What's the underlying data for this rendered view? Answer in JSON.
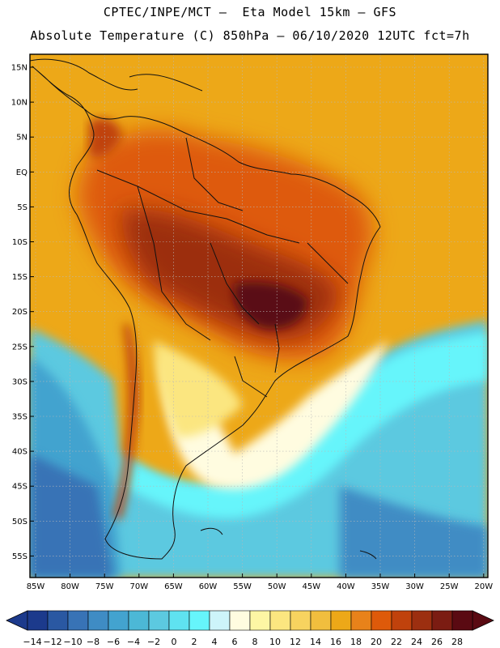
{
  "header": {
    "line1": "CPTEC/INPE/MCT –  Eta Model 15km – GFS",
    "line2": "Absolute Temperature (C) 850hPa – 06/10/2020 12UTC fct=7h"
  },
  "map": {
    "region": "South America",
    "lat_labels": [
      "15N",
      "10N",
      "5N",
      "EQ",
      "5S",
      "10S",
      "15S",
      "20S",
      "25S",
      "30S",
      "35S",
      "40S",
      "45S",
      "50S",
      "55S"
    ],
    "lon_labels": [
      "85W",
      "80W",
      "75W",
      "70W",
      "65W",
      "60W",
      "55W",
      "50W",
      "45W",
      "40W",
      "35W",
      "30W",
      "25W",
      "20W"
    ]
  },
  "colorbar": {
    "labels": [
      "-14",
      "-12",
      "-10",
      "-8",
      "-6",
      "-4",
      "-2",
      "0",
      "2",
      "4",
      "6",
      "8",
      "10",
      "12",
      "14",
      "16",
      "18",
      "20",
      "22",
      "24",
      "26",
      "28"
    ],
    "colors": [
      "#1c3a8c",
      "#2a58a2",
      "#3873b6",
      "#3f8cc4",
      "#43a3cf",
      "#4cb8d6",
      "#5cc9e0",
      "#5fe2f0",
      "#66f5fb",
      "#cdf4fa",
      "#fffce0",
      "#fdf6a4",
      "#fbe680",
      "#f7d35f",
      "#f1be3e",
      "#eda818",
      "#e8821a",
      "#de5a0a",
      "#c0420c",
      "#9c2f10",
      "#7b1c12",
      "#5a0a12"
    ]
  }
}
